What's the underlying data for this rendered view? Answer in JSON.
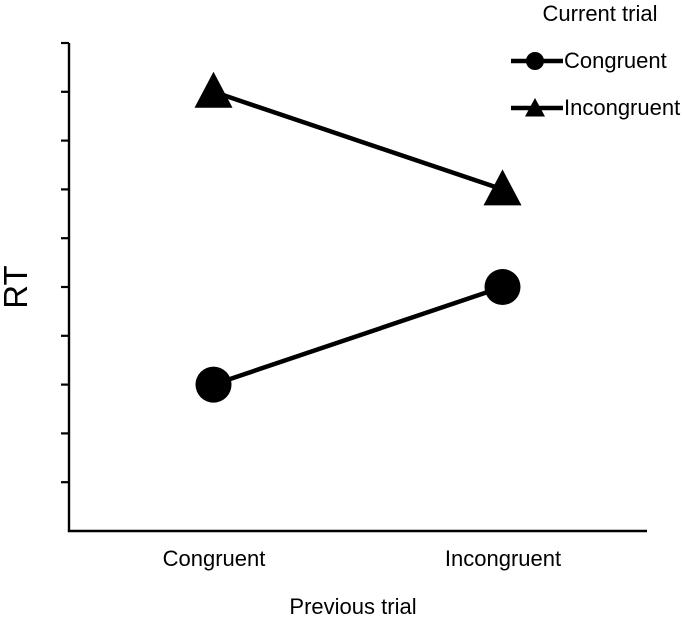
{
  "figure": {
    "background_color": "#ffffff",
    "ink_color": "#000000"
  },
  "chart_data": {
    "type": "line",
    "title": "",
    "legend_title": "Current trial",
    "legend_position": "top-right",
    "xlabel": "Previous trial",
    "ylabel": "RT",
    "categories": [
      "Congruent",
      "Incongruent"
    ],
    "series": [
      {
        "name": "Congruent",
        "marker": "circle",
        "color": "#000000",
        "values": [
          3,
          5
        ]
      },
      {
        "name": "Incongruent",
        "marker": "triangle",
        "color": "#000000",
        "values": [
          9,
          7
        ]
      }
    ],
    "ylim": [
      0,
      10
    ],
    "ytick_step": 1,
    "ytick_labels_shown": false,
    "xtick_labels_shown": true,
    "grid": false
  }
}
